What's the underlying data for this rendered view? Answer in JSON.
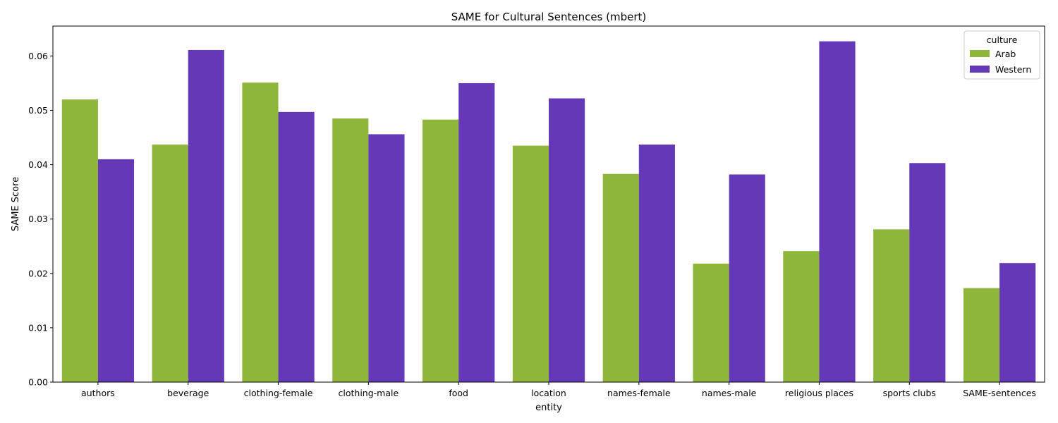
{
  "chart_data": {
    "type": "bar",
    "title": "SAME for Cultural Sentences (mbert)",
    "xlabel": "entity",
    "ylabel": "SAME Score",
    "ylim": [
      0,
      0.0655
    ],
    "yticks": [
      "0.00",
      "0.01",
      "0.02",
      "0.03",
      "0.04",
      "0.05",
      "0.06"
    ],
    "categories": [
      "authors",
      "beverage",
      "clothing-female",
      "clothing-male",
      "food",
      "location",
      "names-female",
      "names-male",
      "religious places",
      "sports clubs",
      "SAME-sentences"
    ],
    "series": [
      {
        "name": "Arab",
        "color": "#8db63a",
        "values": [
          0.052,
          0.0437,
          0.0551,
          0.0485,
          0.0483,
          0.0435,
          0.0383,
          0.0218,
          0.0241,
          0.0281,
          0.0173
        ]
      },
      {
        "name": "Western",
        "color": "#6538b8",
        "values": [
          0.041,
          0.0611,
          0.0497,
          0.0456,
          0.055,
          0.0522,
          0.0437,
          0.0382,
          0.0627,
          0.0403,
          0.0219
        ]
      }
    ],
    "legend": {
      "title": "culture",
      "position": "top-right"
    },
    "grid": false
  }
}
